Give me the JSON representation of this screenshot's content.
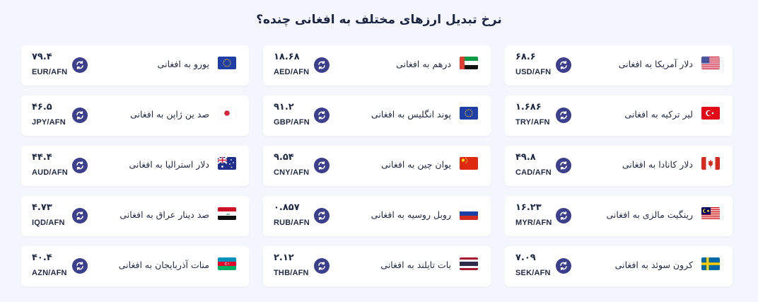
{
  "title": "نرخ تبدیل ارزهای مختلف به افغانی چنده؟",
  "rows": [
    [
      {
        "name": "یورو به افغانی",
        "rate": "۷۹.۴",
        "pair": "EUR/AFN",
        "flag": "eu-flag-icon"
      },
      {
        "name": "درهم به افغانی",
        "rate": "۱۸.۶۸",
        "pair": "AED/AFN",
        "flag": "uae-flag-icon"
      },
      {
        "name": "دلار آمریکا به افغانی",
        "rate": "۶۸.۶",
        "pair": "USD/AFN",
        "flag": "us-flag-icon"
      }
    ],
    [
      {
        "name": "صد ین ژاپن به افغانی",
        "rate": "۴۶.۵",
        "pair": "JPY/AFN",
        "flag": "japan-flag-icon"
      },
      {
        "name": "پوند انگلیس به افغانی",
        "rate": "۹۱.۲",
        "pair": "GBP/AFN",
        "flag": "eu-flag-icon"
      },
      {
        "name": "لیر ترکیه به افغانی",
        "rate": "۱.۶۸۶",
        "pair": "TRY/AFN",
        "flag": "turkey-flag-icon"
      }
    ],
    [
      {
        "name": "دلار استرالیا به افغانی",
        "rate": "۴۴.۴",
        "pair": "AUD/AFN",
        "flag": "australia-flag-icon"
      },
      {
        "name": "یوان چین به افغانی",
        "rate": "۹.۵۴",
        "pair": "CNY/AFN",
        "flag": "china-flag-icon"
      },
      {
        "name": "دلار کانادا به افغانی",
        "rate": "۴۹.۸",
        "pair": "CAD/AFN",
        "flag": "canada-flag-icon"
      }
    ],
    [
      {
        "name": "صد دینار عراق به افغانی",
        "rate": "۴.۷۳",
        "pair": "IQD/AFN",
        "flag": "iraq-flag-icon"
      },
      {
        "name": "روبل روسیه به افغانی",
        "rate": "۰.۸۵۷",
        "pair": "RUB/AFN",
        "flag": "russia-flag-icon"
      },
      {
        "name": "رینگیت مالزی به افغانی",
        "rate": "۱۶.۲۳",
        "pair": "MYR/AFN",
        "flag": "malaysia-flag-icon"
      }
    ],
    [
      {
        "name": "منات آذربایجان به افغانی",
        "rate": "۴۰.۴",
        "pair": "AZN/AFN",
        "flag": "azerbaijan-flag-icon"
      },
      {
        "name": "بات تایلند به افغانی",
        "rate": "۲.۱۲",
        "pair": "THB/AFN",
        "flag": "thailand-flag-icon"
      },
      {
        "name": "کرون سوئد به افغانی",
        "rate": "۷.۰۹",
        "pair": "SEK/AFN",
        "flag": "sweden-flag-icon"
      }
    ]
  ],
  "colors": {
    "background": "#f3f6fc",
    "card": "#ffffff",
    "swap_button": "#3b3f8c",
    "text": "#1f2a44"
  },
  "icons": {
    "swap": "swap-arrows-icon"
  }
}
